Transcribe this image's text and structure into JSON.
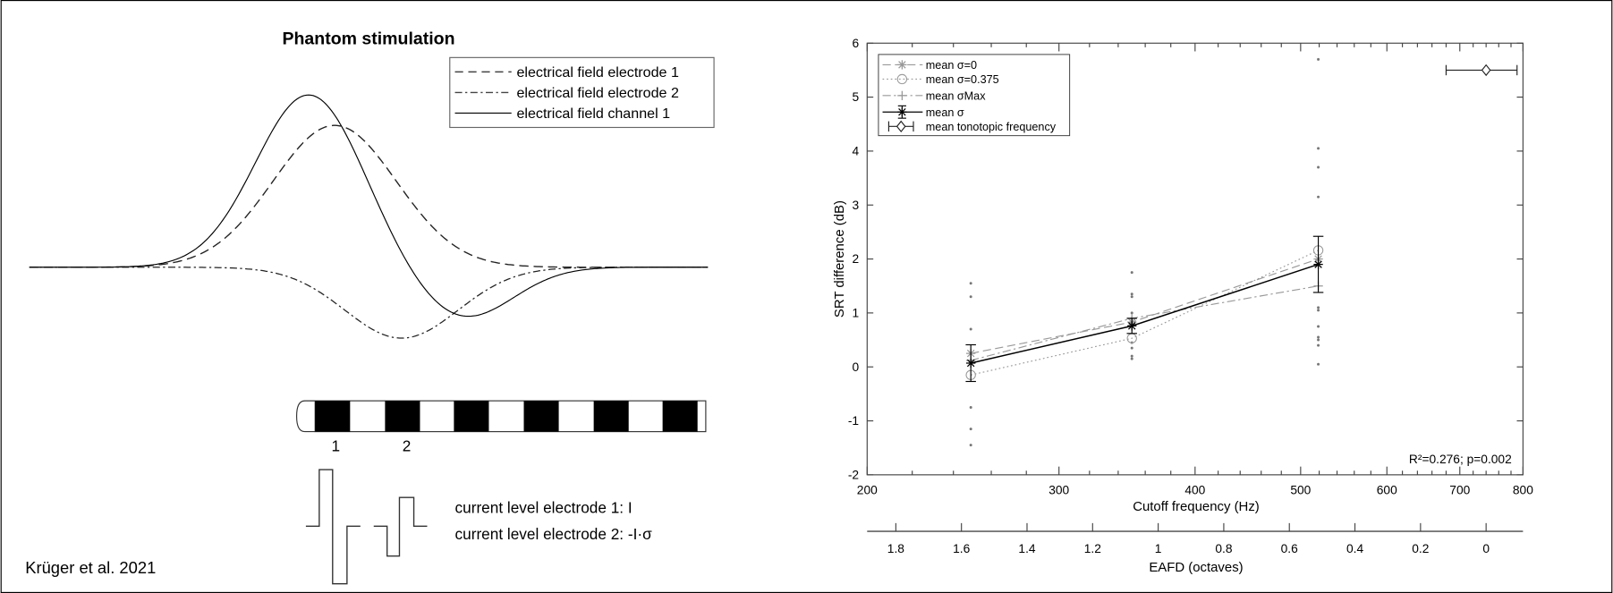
{
  "diagram": {
    "title": "Phantom stimulation",
    "legend": [
      {
        "label": "electrical field electrode 1",
        "style": "dashed"
      },
      {
        "label": "electrical field electrode 2",
        "style": "dash-dot"
      },
      {
        "label": "electrical field channel 1",
        "style": "solid"
      }
    ],
    "electrode_labels": [
      "1",
      "2"
    ],
    "current_levels": [
      "current level electrode 1: I",
      "current level electrode 2: -I·σ"
    ],
    "credit": "Krüger et al. 2021"
  },
  "chart_data": {
    "type": "line",
    "xlabel": "Cutoff frequency (Hz)",
    "ylabel": "SRT difference (dB)",
    "x_scale": "log",
    "xlim": [
      200,
      800
    ],
    "ylim": [
      -2,
      6
    ],
    "x_ticks": [
      200,
      300,
      400,
      500,
      600,
      700,
      800
    ],
    "y_ticks": [
      -2,
      -1,
      0,
      1,
      2,
      3,
      4,
      5,
      6
    ],
    "secondary_x_axis": {
      "label": "EAFD (octaves)",
      "ticks": [
        1.8,
        1.6,
        1.4,
        1.2,
        1,
        0.8,
        0.6,
        0.4,
        0.2,
        0
      ],
      "zero_at_hz": 740
    },
    "annotation": "R²=0.276; p=0.002",
    "legend_position": "top-left",
    "grid": false,
    "x": [
      249,
      350,
      519
    ],
    "series": [
      {
        "name": "mean σ=0",
        "marker": "asterisk",
        "line": "dashed",
        "color": "#999999",
        "values": [
          0.25,
          0.83,
          2.0
        ]
      },
      {
        "name": "mean σ=0.375",
        "marker": "circle",
        "line": "dotted",
        "color": "#999999",
        "values": [
          -0.15,
          0.53,
          2.16
        ]
      },
      {
        "name": "mean σMax",
        "marker": "plus",
        "line": "dash-dot",
        "color": "#999999",
        "values": [
          0.12,
          0.9,
          1.5
        ]
      },
      {
        "name": "mean σ",
        "marker": "asterisk",
        "line": "solid",
        "color": "#000000",
        "values": [
          0.07,
          0.76,
          1.9
        ],
        "error_low": [
          -0.27,
          0.62,
          1.38
        ],
        "error_high": [
          0.41,
          0.9,
          2.42
        ]
      }
    ],
    "tonotopic": {
      "name": "mean tonotopic frequency",
      "x": 740,
      "x_low": 680,
      "x_high": 790,
      "y": 5.5
    },
    "individual_points": [
      [
        1.55,
        1.3,
        0.7,
        -0.75,
        -1.15,
        -1.45
      ],
      [
        1.75,
        1.35,
        1.3,
        1.0,
        0.9,
        0.8,
        0.45,
        0.35,
        0.2,
        0.15
      ],
      [
        5.7,
        4.05,
        3.7,
        3.15,
        1.1,
        1.05,
        0.75,
        0.55,
        0.5,
        0.4,
        0.05
      ]
    ]
  }
}
